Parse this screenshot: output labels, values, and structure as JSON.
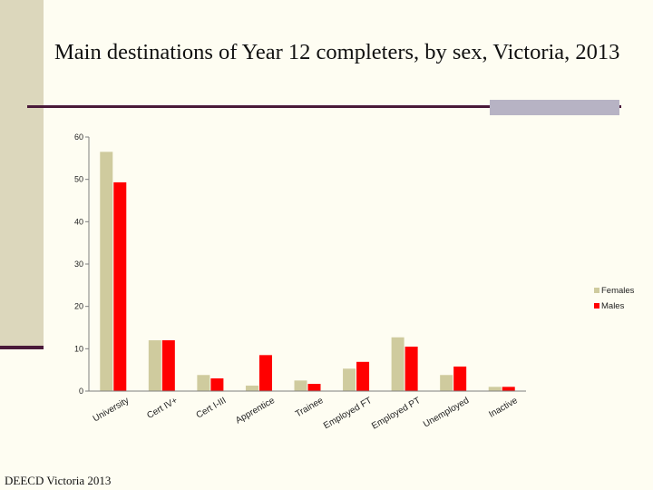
{
  "slide": {
    "title": "Main destinations of Year 12 completers, by sex, Victoria, 2013",
    "footer": "DEECD Victoria 2013"
  },
  "colors": {
    "females": "#cfcb9e",
    "males": "#ff0000",
    "axis": "#7f7f7f",
    "accent_rule": "#4a1a3a"
  },
  "chart_data": {
    "type": "bar",
    "title": "Main destinations of Year 12 completers, by sex, Victoria, 2013",
    "categories": [
      "University",
      "Cert IV+",
      "Cert I-III",
      "Apprentice",
      "Trainee",
      "Employed FT",
      "Employed PT",
      "Unemployed",
      "Inactive"
    ],
    "series": [
      {
        "name": "Females",
        "color": "#cfcb9e",
        "values": [
          56.5,
          12.0,
          3.8,
          1.3,
          2.5,
          5.3,
          12.7,
          3.8,
          1.0
        ]
      },
      {
        "name": "Males",
        "color": "#ff0000",
        "values": [
          49.3,
          12.0,
          3.0,
          8.5,
          1.7,
          6.9,
          10.5,
          5.8,
          1.0
        ]
      }
    ],
    "yticks": [
      0,
      10,
      20,
      30,
      40,
      50,
      60
    ],
    "ylim": [
      0,
      60
    ],
    "xlabel": "",
    "ylabel": "",
    "legend": "right",
    "grid": false
  }
}
